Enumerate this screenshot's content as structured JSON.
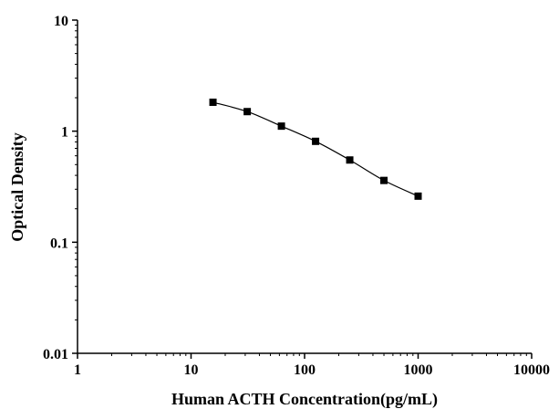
{
  "chart_data": {
    "type": "line",
    "title": "",
    "xlabel": "Human ACTH Concentration(pg/mL)",
    "ylabel": "Optical Density",
    "xscale": "log",
    "yscale": "log",
    "xlim": [
      1,
      10000
    ],
    "ylim": [
      0.01,
      10
    ],
    "x_ticks": [
      1,
      10,
      100,
      1000,
      10000
    ],
    "x_tick_labels": [
      "1",
      "10",
      "100",
      "1000",
      "10000"
    ],
    "y_ticks": [
      0.01,
      0.1,
      1,
      10
    ],
    "y_tick_labels": [
      "0.01",
      "0.1",
      "1",
      "10"
    ],
    "grid": false,
    "legend": "none",
    "series": [
      {
        "marker": "square",
        "color": "#000000",
        "x": [
          15.6,
          31.25,
          62.5,
          125,
          250,
          500,
          1000
        ],
        "y": [
          1.82,
          1.5,
          1.11,
          0.81,
          0.55,
          0.36,
          0.26
        ]
      }
    ]
  }
}
